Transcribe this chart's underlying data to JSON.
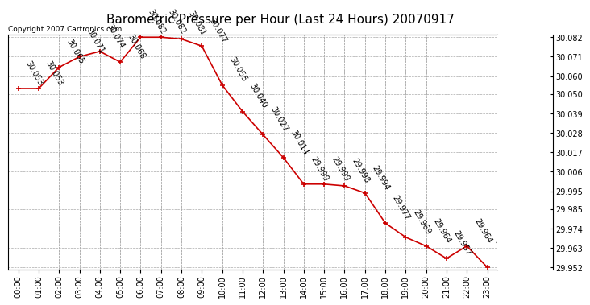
{
  "title": "Barometric Pressure per Hour (Last 24 Hours) 20070917",
  "copyright": "Copyright 2007 Cartronics.com",
  "hours": [
    "00:00",
    "01:00",
    "02:00",
    "03:00",
    "04:00",
    "05:00",
    "06:00",
    "07:00",
    "08:00",
    "09:00",
    "10:00",
    "11:00",
    "12:00",
    "13:00",
    "14:00",
    "15:00",
    "16:00",
    "17:00",
    "18:00",
    "19:00",
    "20:00",
    "21:00",
    "22:00",
    "23:00"
  ],
  "values": [
    30.053,
    30.053,
    30.065,
    30.071,
    30.074,
    30.068,
    30.082,
    30.082,
    30.081,
    30.077,
    30.055,
    30.04,
    30.027,
    30.014,
    29.999,
    29.999,
    29.998,
    29.994,
    29.977,
    29.969,
    29.964,
    29.957,
    29.964,
    29.952
  ],
  "ylim_min": 29.9505,
  "ylim_max": 30.0835,
  "yticks": [
    30.082,
    30.071,
    30.06,
    30.05,
    30.039,
    30.028,
    30.017,
    30.006,
    29.995,
    29.985,
    29.974,
    29.963,
    29.952
  ],
  "line_color": "#cc0000",
  "marker_color": "#cc0000",
  "grid_color": "#aaaaaa",
  "background_color": "#ffffff",
  "title_fontsize": 11,
  "label_fontsize": 7,
  "tick_fontsize": 7,
  "copyright_fontsize": 6.5
}
